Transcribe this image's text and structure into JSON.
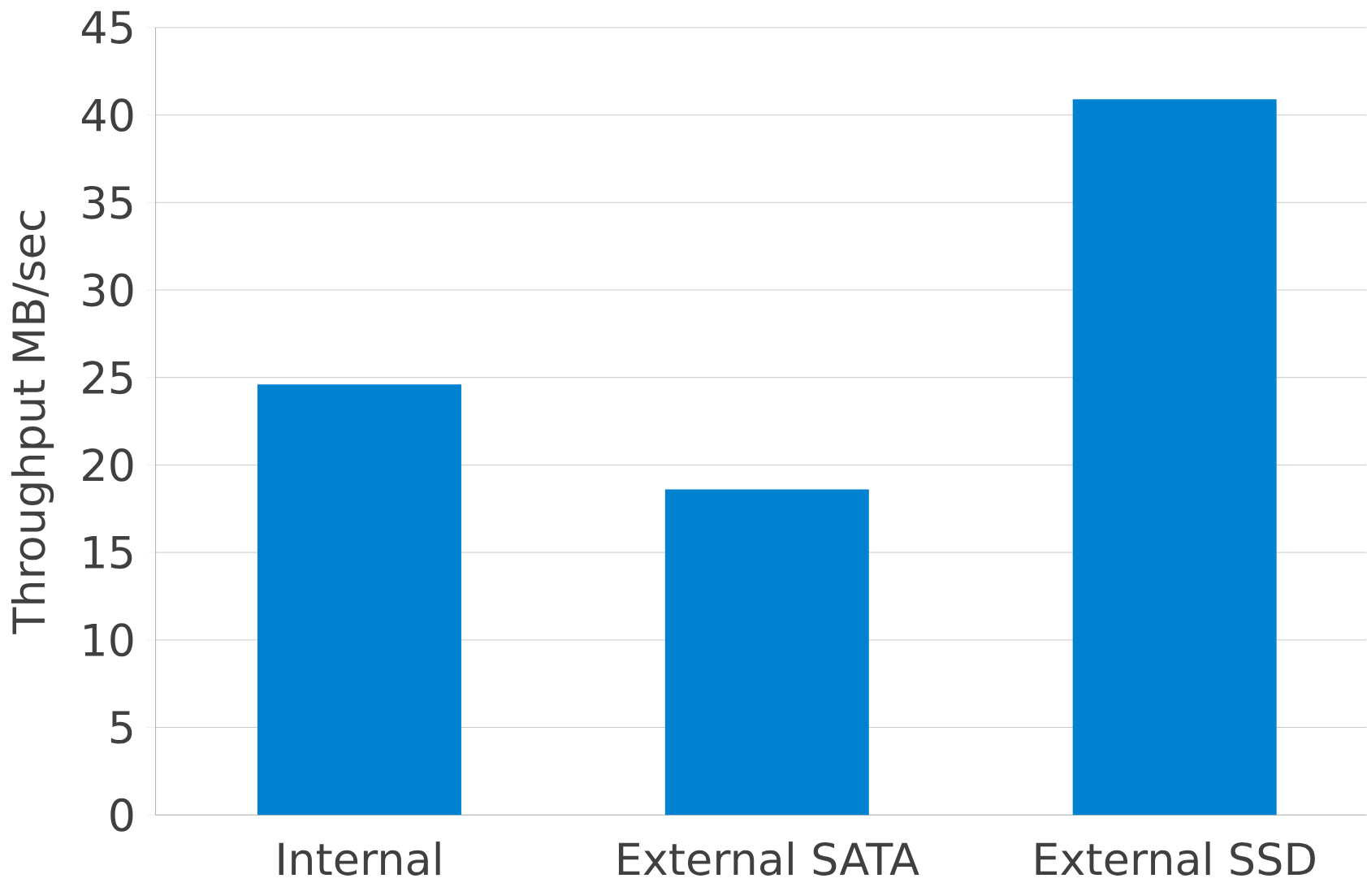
{
  "chart_data": {
    "type": "bar",
    "ylabel": "Throughput MB/sec",
    "categories": [
      "Internal",
      "External SATA",
      "External SSD"
    ],
    "values": [
      24.6,
      18.6,
      40.9
    ],
    "color": "#0082d0",
    "ylim": [
      0,
      45
    ],
    "yticks": [
      0,
      5,
      10,
      15,
      20,
      25,
      30,
      35,
      40,
      45
    ],
    "grid": "y"
  }
}
